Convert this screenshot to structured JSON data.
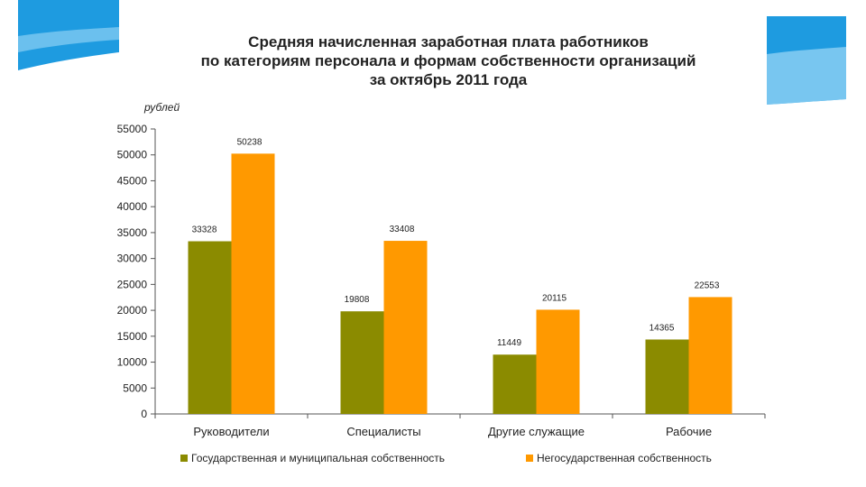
{
  "colors": {
    "series_gov": "#8B8B00",
    "series_nongov": "#FF9900",
    "deco_blue": "#1E9BE0",
    "deco_light": "#9ED8F7"
  },
  "chart_data": {
    "type": "bar",
    "title_lines": [
      "Средняя начисленная заработная плата работников",
      "по категориям персонала и формам собственности организаций",
      "за октябрь 2011 года"
    ],
    "ylabel": "рублей",
    "xlabel": "",
    "ylim": [
      0,
      55000
    ],
    "ytick_step": 5000,
    "grid": false,
    "legend_position": "bottom",
    "categories": [
      "Руководители",
      "Специалисты",
      "Другие служащие",
      "Рабочие"
    ],
    "series": [
      {
        "name": "Государственная и муниципальная собственность",
        "color": "#8B8B00",
        "values": [
          33328,
          19808,
          11449,
          14365
        ]
      },
      {
        "name": "Негосударственная собственность",
        "color": "#FF9900",
        "values": [
          50238,
          33408,
          20115,
          22553
        ]
      }
    ]
  }
}
